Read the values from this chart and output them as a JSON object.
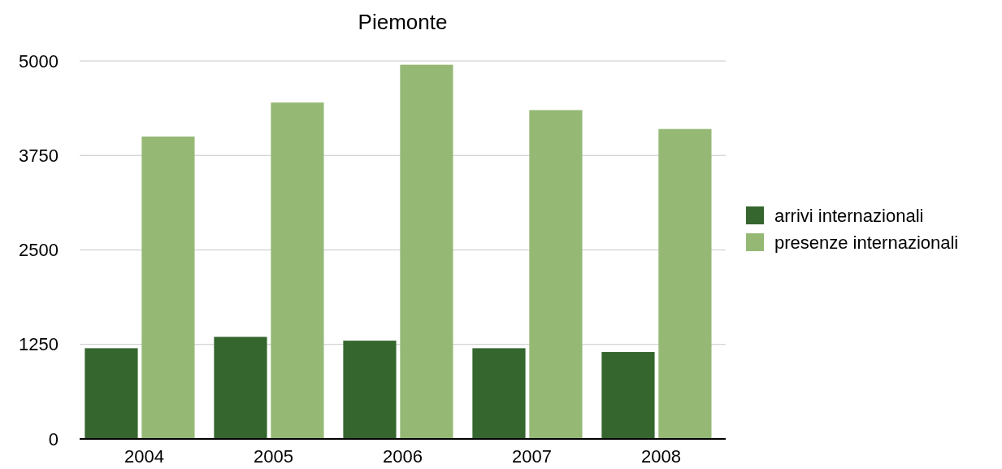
{
  "chart_data": {
    "type": "bar",
    "title": "Piemonte",
    "categories": [
      "2004",
      "2005",
      "2006",
      "2007",
      "2008"
    ],
    "series": [
      {
        "name": "arrivi internazionali",
        "color": "#34662e",
        "values": [
          1200,
          1350,
          1300,
          1200,
          1150
        ]
      },
      {
        "name": "presenze internazionali",
        "color": "#95b975",
        "values": [
          4000,
          4450,
          4950,
          4350,
          4100
        ]
      }
    ],
    "ylim": [
      0,
      5000
    ],
    "yticks": [
      0,
      1250,
      2500,
      3750,
      5000
    ],
    "grid": "y",
    "legend": "right"
  }
}
